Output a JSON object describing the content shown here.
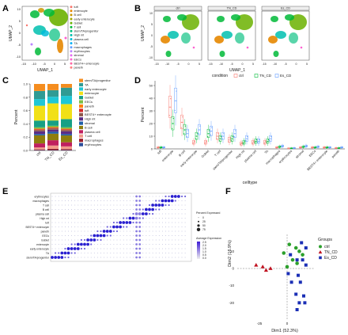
{
  "panels": {
    "A": {
      "letter": "A",
      "xlabel": "UMAP_1",
      "ylabel": "UMAP_2",
      "xticks": [
        "-15",
        "-10",
        "-5",
        "0",
        "5"
      ],
      "yticks": [
        "10",
        "5",
        "0",
        "-5",
        "-10"
      ],
      "legend": [
        {
          "label": "tuft",
          "color": "#f8766d"
        },
        {
          "label": "enterocyte",
          "color": "#e58700"
        },
        {
          "label": "B cell",
          "color": "#c99800"
        },
        {
          "label": "early enterocyte",
          "color": "#a3a500"
        },
        {
          "label": "Goblet",
          "color": "#6bb100"
        },
        {
          "label": "T cell",
          "color": "#00ba38"
        },
        {
          "label": "stem/TA/progenitor",
          "color": "#00bf7d"
        },
        {
          "label": "High mt",
          "color": "#00c0af"
        },
        {
          "label": "plasma cell",
          "color": "#00bcd8"
        },
        {
          "label": "TA",
          "color": "#00b0f6"
        },
        {
          "label": "macrophages",
          "color": "#619cff"
        },
        {
          "label": "erythrocytes",
          "color": "#b983ff"
        },
        {
          "label": "stromal",
          "color": "#e76bf3"
        },
        {
          "label": "EECs",
          "color": "#fd61d1"
        },
        {
          "label": "BEST4+ enterocyte",
          "color": "#ff67a4"
        },
        {
          "label": "paneth",
          "color": "#ff7f7f"
        }
      ]
    },
    "B": {
      "letter": "B",
      "facets": [
        "ctrl",
        "TN_CD",
        "Es_CD"
      ],
      "xlabel": "UMAP_1",
      "ylabel": "UMAP_2",
      "xticks": [
        "-15",
        "-10",
        "-5",
        "0",
        "5"
      ],
      "yticks": [
        "10",
        "5",
        "0",
        "-5",
        "-10"
      ]
    },
    "C": {
      "letter": "C",
      "ylabel": "Percent",
      "yticks": [
        "1.0",
        "0.8",
        "0.6",
        "0.4",
        "0.2",
        "0.0"
      ]
    },
    "D": {
      "letter": "D",
      "ylabel": "Percent",
      "xlabel": "celltype",
      "legend_title": "condition",
      "yticks": [
        "50",
        "40",
        "30",
        "20",
        "10",
        "0"
      ]
    },
    "E": {
      "letter": "E",
      "size_legend_title": "Percent Expressed",
      "size_legend_labels": [
        "0",
        "25",
        "50",
        "75"
      ],
      "color_legend_title": "Average Expression",
      "color_legend_labels": [
        "2.5",
        "2.0",
        "1.5",
        "1.0",
        "0.5",
        "0.0"
      ],
      "rows": [
        "erythrocytes",
        "macrophages",
        "T cell",
        "B cell",
        "plasma cell",
        "High mt",
        "tuft",
        "BEST4+ enterocyte",
        "paneth",
        "EECs",
        "Goblet",
        "enterocyte",
        "early enterocyte",
        "TA",
        "stem/TA/progenitor"
      ]
    },
    "F": {
      "letter": "F",
      "xlabel": "Dim1 (52.3%)",
      "ylabel": "Dim2 (16.9%)",
      "xticks": [
        "-25",
        "0"
      ],
      "yticks": [
        "10",
        "0",
        "-10",
        "-20"
      ],
      "legend_title": "Groups",
      "legend": [
        {
          "label": "ctrl",
          "color": "#2ca02c",
          "shape": "circle"
        },
        {
          "label": "TN_CD",
          "color": "#c0111f",
          "shape": "triangle"
        },
        {
          "label": "Es_CD",
          "color": "#1b2fb5",
          "shape": "square"
        }
      ]
    }
  },
  "chart_data": [
    {
      "type": "bar",
      "panel": "C",
      "ylabel": "Percent",
      "categories": [
        "ctrl",
        "TN_CD",
        "Es_CD"
      ],
      "ylim": [
        0,
        1
      ],
      "legend_placement": "right",
      "series": [
        {
          "name": "erythrocytes",
          "color": "#2a4d9a",
          "values": [
            0.005,
            0.005,
            0.005
          ]
        },
        {
          "name": "macrophages",
          "color": "#9a1d2b",
          "values": [
            0.01,
            0.02,
            0.015
          ]
        },
        {
          "name": "T cell",
          "color": "#f29a8a",
          "values": [
            0.03,
            0.05,
            0.04
          ]
        },
        {
          "name": "plasma cell",
          "color": "#c01f5e",
          "values": [
            0.06,
            0.08,
            0.06
          ]
        },
        {
          "name": "B cell",
          "color": "#8f7e0d",
          "values": [
            0.12,
            0.1,
            0.1
          ]
        },
        {
          "name": "stromal",
          "color": "#1f5fa8",
          "values": [
            0.02,
            0.03,
            0.02
          ]
        },
        {
          "name": "High mt",
          "color": "#5a2d86",
          "values": [
            0.04,
            0.03,
            0.04
          ]
        },
        {
          "name": "BEST4+ enterocyte",
          "color": "#8c564b",
          "values": [
            0.02,
            0.02,
            0.02
          ]
        },
        {
          "name": "tuft",
          "color": "#d62728",
          "values": [
            0.01,
            0.01,
            0.01
          ]
        },
        {
          "name": "paneth",
          "color": "#ff7f0e",
          "values": [
            0.01,
            0.01,
            0.01
          ]
        },
        {
          "name": "EECs",
          "color": "#7cc043",
          "values": [
            0.02,
            0.02,
            0.02
          ]
        },
        {
          "name": "Goblet",
          "color": "#17a085",
          "values": [
            0.1,
            0.08,
            0.12
          ]
        },
        {
          "name": "enterocyte",
          "color": "#f1e017",
          "values": [
            0.22,
            0.26,
            0.22
          ]
        },
        {
          "name": "early enterocyte",
          "color": "#1ec7d6",
          "values": [
            0.1,
            0.1,
            0.12
          ]
        },
        {
          "name": "TA",
          "color": "#2f9b94",
          "values": [
            0.12,
            0.1,
            0.12
          ]
        },
        {
          "name": "stem/TA/progenitor",
          "color": "#f58d1f",
          "values": [
            0.105,
            0.095,
            0.055
          ]
        }
      ]
    },
    {
      "type": "box",
      "panel": "D",
      "ylabel": "Percent",
      "xlabel": "celltype",
      "ylim": [
        0,
        50
      ],
      "categories": [
        "tuft",
        "enterocyte",
        "B cell",
        "early enterocyte",
        "Goblet",
        "T cell",
        "stem/TA/progenitor",
        "High mt",
        "plasma cell",
        "TA",
        "macrophages",
        "erythrocytes",
        "stromal",
        "EECs",
        "BEST4+ enterocyte",
        "paneth"
      ],
      "series": [
        {
          "name": "ctrl",
          "color": "#f8766d",
          "medians": [
            1,
            33,
            21,
            5,
            5,
            10,
            7,
            4,
            5,
            5,
            1,
            0.2,
            1,
            1,
            1,
            0.5
          ]
        },
        {
          "name": "TN_CD",
          "color": "#00ba38",
          "medians": [
            1,
            20,
            15,
            10,
            12,
            8,
            8,
            5,
            6,
            6,
            1.5,
            0.3,
            1.5,
            1,
            1,
            0.5
          ]
        },
        {
          "name": "Es_CD",
          "color": "#619cff",
          "medians": [
            1,
            38,
            12,
            15,
            14,
            10,
            12,
            8,
            6,
            8,
            2,
            0.5,
            2,
            1.5,
            1,
            1
          ]
        }
      ]
    },
    {
      "type": "scatter",
      "panel": "F",
      "xlabel": "Dim1 (52.3%)",
      "ylabel": "Dim2 (16.9%)",
      "xlim": [
        -45,
        25
      ],
      "ylim": [
        -30,
        18
      ],
      "series": [
        {
          "name": "ctrl",
          "color": "#2ca02c",
          "x": [
            2,
            8,
            -3,
            11,
            14,
            5,
            9,
            0
          ],
          "y": [
            14,
            12,
            9,
            10,
            8,
            5,
            3,
            1
          ]
        },
        {
          "name": "TN_CD",
          "color": "#c0111f",
          "x": [
            -28,
            -22,
            -19,
            -15
          ],
          "y": [
            2,
            1,
            -1,
            0
          ]
        },
        {
          "name": "Es_CD",
          "color": "#1b2fb5",
          "x": [
            13,
            17,
            3,
            9,
            14,
            17,
            1,
            10,
            4,
            12,
            8,
            15,
            11,
            16,
            9
          ],
          "y": [
            15,
            12,
            8,
            5,
            5,
            2,
            -3,
            -4,
            -8,
            -8,
            -15,
            -16,
            -20,
            -20,
            -24
          ]
        }
      ]
    }
  ]
}
